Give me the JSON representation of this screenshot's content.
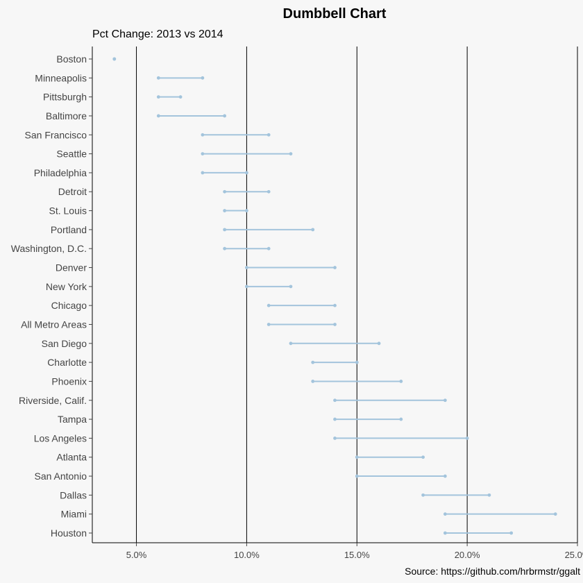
{
  "chart_data": {
    "type": "dumbbell",
    "title": "Dumbbell Chart",
    "subtitle": "Pct Change: 2013 vs 2014",
    "caption": "Source: https://github.com/hrbrmstr/ggalt",
    "xlim": [
      0.03,
      0.25
    ],
    "x_ticks": [
      0.05,
      0.1,
      0.15,
      0.2,
      0.25
    ],
    "x_tick_labels": [
      "5.0%",
      "10.0%",
      "15.0%",
      "20.0%",
      "25.0%"
    ],
    "vertical_gridlines": true,
    "color": "#a3c4dc",
    "cities": [
      "Boston",
      "Minneapolis",
      "Pittsburgh",
      "Baltimore",
      "San Francisco",
      "Seattle",
      "Philadelphia",
      "Detroit",
      "St. Louis",
      "Portland",
      "Washington, D.C.",
      "Denver",
      "New York",
      "Chicago",
      "All Metro Areas",
      "San Diego",
      "Charlotte",
      "Phoenix",
      "Riverside, Calif.",
      "Tampa",
      "Los Angeles",
      "Atlanta",
      "San Antonio",
      "Dallas",
      "Miami",
      "Houston"
    ],
    "pct_2013": [
      0.04,
      0.06,
      0.06,
      0.06,
      0.08,
      0.08,
      0.08,
      0.09,
      0.09,
      0.09,
      0.09,
      0.1,
      0.1,
      0.11,
      0.11,
      0.12,
      0.13,
      0.13,
      0.14,
      0.14,
      0.14,
      0.15,
      0.15,
      0.18,
      0.19,
      0.19
    ],
    "pct_2014": [
      0.04,
      0.08,
      0.07,
      0.09,
      0.11,
      0.12,
      0.1,
      0.11,
      0.1,
      0.13,
      0.11,
      0.14,
      0.12,
      0.14,
      0.14,
      0.16,
      0.15,
      0.17,
      0.19,
      0.17,
      0.2,
      0.18,
      0.19,
      0.21,
      0.24,
      0.22
    ]
  }
}
